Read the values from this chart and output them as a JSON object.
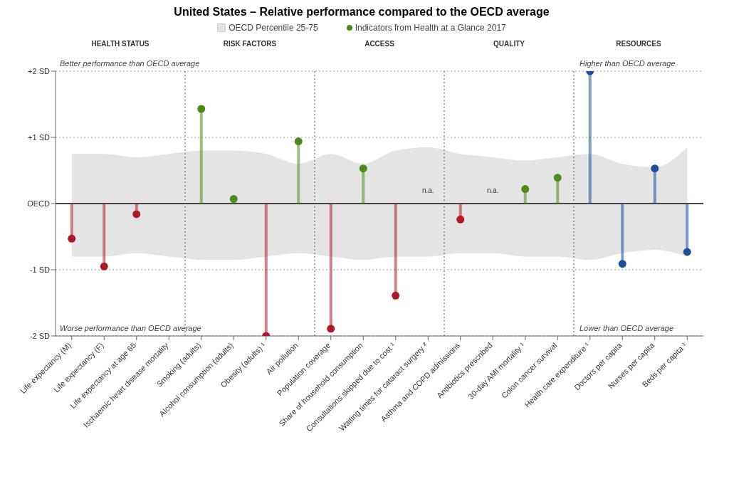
{
  "chart_data": {
    "type": "lollipop",
    "title": "United States – Relative performance compared to the OECD average",
    "categories": [
      "Life expectancy (M)",
      "Life expectancy (F)",
      "Life expectancy at age 65",
      "Ischaemic heart disease mortality",
      "Smoking (adults)",
      "Alcohol consumption (adults)",
      "Obesity (adults) ¹",
      "Air pollution",
      "Population coverage",
      "Share of household consumption",
      "Consultations skipped due to cost ¹",
      "Waiting times for cataract surgery ²",
      "Asthma and COPD admissions",
      "Antibiotics prescribed",
      "30-day AMI mortality ¹",
      "Colon cancer survival",
      "Health care expenditure ¹",
      "Doctors per capita",
      "Nurses per capita",
      "Beds per capita ¹"
    ],
    "series": [
      {
        "name": "OECD Percentile 25-75",
        "type": "area",
        "color": "#e4e4e4",
        "values": [
          null,
          null,
          null,
          null,
          null,
          null,
          null,
          null,
          null,
          null,
          null,
          null,
          null,
          null,
          null,
          null,
          null,
          null,
          null,
          null
        ],
        "lower": [
          -0.8,
          -0.8,
          -0.75,
          -0.8,
          -0.85,
          -0.85,
          -0.8,
          -0.75,
          -0.8,
          -0.85,
          -0.8,
          -0.8,
          -0.75,
          -0.75,
          -0.8,
          -0.8,
          -0.85,
          -0.75,
          -0.7,
          -0.8
        ],
        "upper": [
          0.75,
          0.75,
          0.7,
          0.75,
          0.8,
          0.8,
          0.75,
          0.6,
          0.75,
          0.6,
          0.8,
          0.85,
          0.75,
          0.7,
          0.65,
          0.7,
          0.75,
          0.6,
          0.55,
          0.85
        ]
      },
      {
        "name": "Indicators from Health at a Glance 2017",
        "color": "#4e8a1a",
        "values": [
          -0.53,
          -0.95,
          -0.16,
          null,
          1.43,
          0.07,
          -2.0,
          0.94,
          -1.89,
          0.53,
          -1.39,
          null,
          -0.24,
          null,
          0.22,
          0.39,
          2.0,
          -0.91,
          0.53,
          -0.73
        ],
        "value_labels": [
          null,
          null,
          null,
          null,
          null,
          null,
          null,
          null,
          null,
          null,
          null,
          "n.a.",
          null,
          "n.a.",
          null,
          null,
          null,
          null,
          null,
          null
        ],
        "colors": [
          "#b01828",
          "#b01828",
          "#b01828",
          null,
          "#4e8a1a",
          "#4e8a1a",
          "#b01828",
          "#4e8a1a",
          "#b01828",
          "#4e8a1a",
          "#b01828",
          null,
          "#b01828",
          null,
          "#4e8a1a",
          "#4e8a1a",
          "#1f4e9a",
          "#1f4e9a",
          "#1f4e9a",
          "#1f4e9a"
        ]
      }
    ],
    "ylim": [
      -2,
      2
    ],
    "yticks": [
      {
        "value": 2,
        "label": "+2 SD"
      },
      {
        "value": 1,
        "label": "+1 SD"
      },
      {
        "value": 0,
        "label": "OECD"
      },
      {
        "value": -1,
        "label": "-1 SD"
      },
      {
        "value": -2,
        "label": "-2 SD"
      }
    ],
    "grid": "y",
    "legend": "top",
    "marker": "circle",
    "annotations": [
      "HEALTH STATUS",
      "RISK FACTORS",
      "ACCESS",
      "QUALITY",
      "RESOURCES",
      "Better performance than OECD average",
      "Worse performance than OECD average",
      "Higher than OECD average",
      "Lower than OECD average"
    ]
  }
}
